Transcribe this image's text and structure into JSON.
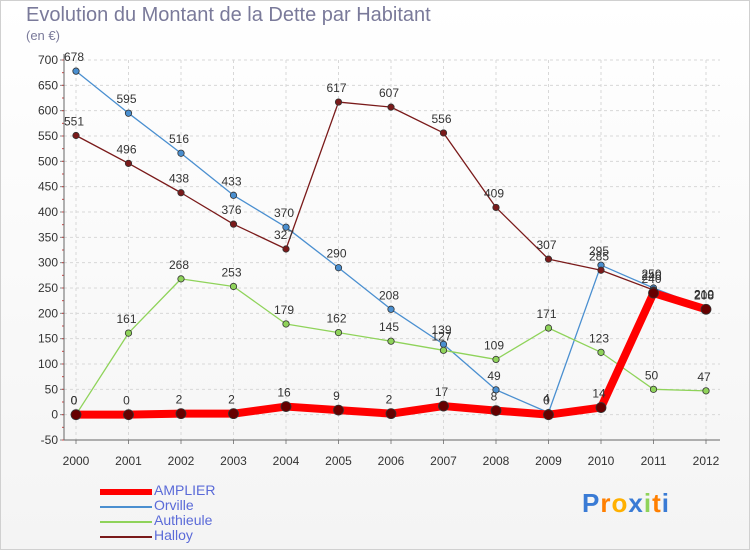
{
  "header": {
    "title": "Evolution du Montant de la Dette par Habitant",
    "subtitle": "(en €)"
  },
  "brand": {
    "logo_text": "Proxiti"
  },
  "colors": {
    "AMPLIER": "#ff0000",
    "Orville": "#4a8fd0",
    "Authieule": "#8fd35a",
    "Halloy": "#7a1a1a"
  },
  "chart_data": {
    "type": "line",
    "title": "Evolution du Montant de la Dette par Habitant",
    "subtitle": "(en €)",
    "xlabel": "",
    "ylabel": "",
    "x": [
      "2000",
      "2001",
      "2002",
      "2003",
      "2004",
      "2005",
      "2006",
      "2007",
      "2008",
      "2009",
      "2010",
      "2011",
      "2012"
    ],
    "ylim": [
      -50,
      700
    ],
    "yticks": [
      -50,
      0,
      50,
      100,
      150,
      200,
      250,
      300,
      350,
      400,
      450,
      500,
      550,
      600,
      650,
      700
    ],
    "grid": true,
    "legend": "bottom-left",
    "series": [
      {
        "name": "AMPLIER",
        "values": [
          0,
          0,
          2,
          2,
          16,
          9,
          2,
          17,
          8,
          0,
          14,
          240,
          208
        ]
      },
      {
        "name": "Orville",
        "values": [
          678,
          595,
          516,
          433,
          370,
          290,
          208,
          139,
          49,
          4,
          295,
          250,
          210
        ]
      },
      {
        "name": "Authieule",
        "values": [
          0,
          161,
          268,
          253,
          179,
          162,
          145,
          127,
          109,
          171,
          123,
          50,
          47
        ]
      },
      {
        "name": "Halloy",
        "values": [
          551,
          496,
          438,
          376,
          327,
          617,
          607,
          556,
          409,
          307,
          285,
          246,
          210
        ]
      }
    ]
  }
}
